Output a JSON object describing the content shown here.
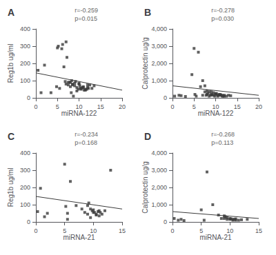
{
  "chart_data": [
    {
      "type": "scatter",
      "title": "A",
      "xlabel": "miRNA-122",
      "ylabel": "Reg1b ug/ml",
      "annotations": [
        "r=-0.259",
        "p=0.015"
      ],
      "xlim": [
        0,
        20
      ],
      "ylim": [
        0,
        400
      ],
      "xticks": [
        0,
        5,
        10,
        15,
        20
      ],
      "yticks": [
        0,
        100,
        200,
        300,
        400
      ],
      "grid": false,
      "series": [
        {
          "type": "scatter",
          "color": "#3a3a3a",
          "marker": "square",
          "x": [
            0.5,
            1.2,
            2.0,
            3.5,
            4.8,
            5.0,
            5.2,
            5.5,
            6.0,
            6.2,
            6.5,
            6.8,
            7.0,
            7.0,
            7.2,
            7.5,
            7.5,
            7.8,
            8.0,
            8.0,
            8.2,
            8.3,
            8.5,
            8.5,
            8.7,
            9.0,
            9.0,
            9.2,
            9.5,
            9.5,
            9.8,
            10.0,
            10.0,
            10.2,
            10.3,
            10.5,
            10.5,
            10.8,
            11.0,
            11.0,
            11.2,
            11.5,
            11.5,
            11.8,
            12.0,
            12.0,
            12.2,
            12.5,
            13.0,
            13.5
          ],
          "values": [
            160,
            30,
            190,
            30,
            65,
            290,
            300,
            55,
            285,
            310,
            180,
            95,
            325,
            80,
            235,
            90,
            75,
            90,
            90,
            65,
            30,
            100,
            75,
            80,
            10,
            85,
            70,
            95,
            60,
            40,
            50,
            85,
            80,
            70,
            55,
            50,
            55,
            60,
            60,
            65,
            45,
            50,
            45,
            50,
            60,
            75,
            55,
            75,
            55,
            70
          ]
        },
        {
          "type": "line",
          "color": "#3a3a3a",
          "line_style": "solid",
          "x": [
            0,
            20
          ],
          "values": [
            145,
            45
          ]
        }
      ]
    },
    {
      "type": "scatter",
      "title": "B",
      "xlabel": "miRNA-122",
      "ylabel": "Calprotectin ug/g",
      "annotations": [
        "r=-0.278",
        "p=0.030"
      ],
      "xlim": [
        0,
        20
      ],
      "ylim": [
        0,
        4000
      ],
      "xticks": [
        0,
        5,
        10,
        15,
        20
      ],
      "yticks": [
        0,
        1000,
        2000,
        3000,
        4000
      ],
      "grid": false,
      "series": [
        {
          "type": "scatter",
          "color": "#3a3a3a",
          "marker": "square",
          "x": [
            0.5,
            1.5,
            2.0,
            3.0,
            4.5,
            5.0,
            5.2,
            5.5,
            6.0,
            6.5,
            7.0,
            7.0,
            7.5,
            7.5,
            7.8,
            8.0,
            8.0,
            8.2,
            8.5,
            8.5,
            8.8,
            9.0,
            9.0,
            9.2,
            9.5,
            9.5,
            9.8,
            10.0,
            10.0,
            10.2,
            10.5,
            10.5,
            10.8,
            11.0,
            11.0,
            11.2,
            11.5,
            11.5,
            11.8,
            12.0,
            12.0,
            12.5,
            13.0,
            13.5
          ],
          "values": [
            100,
            150,
            130,
            80,
            1350,
            2870,
            200,
            100,
            2650,
            650,
            1000,
            150,
            700,
            350,
            150,
            400,
            200,
            250,
            350,
            100,
            150,
            350,
            200,
            175,
            300,
            150,
            100,
            250,
            200,
            250,
            150,
            100,
            200,
            200,
            150,
            175,
            100,
            150,
            100,
            150,
            100,
            100,
            150,
            125
          ]
        },
        {
          "type": "line",
          "color": "#3a3a3a",
          "line_style": "solid",
          "x": [
            0,
            20
          ],
          "values": [
            700,
            150
          ]
        }
      ]
    },
    {
      "type": "scatter",
      "title": "C",
      "xlabel": "miRNA-21",
      "ylabel": "Reg1b ug/ml",
      "annotations": [
        "r=-0.234",
        "p=0.168"
      ],
      "xlim": [
        0,
        15
      ],
      "ylim": [
        0,
        400
      ],
      "xticks": [
        0,
        5,
        10,
        15
      ],
      "yticks": [
        0,
        100,
        200,
        300,
        400
      ],
      "grid": false,
      "series": [
        {
          "type": "scatter",
          "color": "#3a3a3a",
          "marker": "square",
          "x": [
            0.3,
            0.8,
            1.5,
            2.0,
            5.0,
            5.2,
            5.5,
            5.5,
            6.0,
            7.0,
            8.0,
            8.5,
            9.0,
            9.0,
            9.2,
            9.5,
            9.5,
            9.8,
            10.0,
            10.0,
            10.2,
            10.5,
            10.5,
            10.8,
            11.0,
            11.0,
            11.2,
            11.5,
            12.0,
            13.0
          ],
          "values": [
            60,
            195,
            30,
            50,
            335,
            90,
            50,
            15,
            235,
            95,
            75,
            55,
            95,
            45,
            110,
            75,
            25,
            65,
            55,
            70,
            55,
            45,
            40,
            60,
            65,
            35,
            55,
            45,
            65,
            300
          ]
        },
        {
          "type": "line",
          "color": "#3a3a3a",
          "line_style": "solid",
          "x": [
            0,
            15
          ],
          "values": [
            148,
            75
          ]
        }
      ]
    },
    {
      "type": "scatter",
      "title": "D",
      "xlabel": "miRNA-21",
      "ylabel": "Calprotectin ug/g",
      "annotations": [
        "r=-0.268",
        "p=0.113"
      ],
      "xlim": [
        0,
        15
      ],
      "ylim": [
        0,
        4000
      ],
      "xticks": [
        0,
        5,
        10,
        15
      ],
      "yticks": [
        0,
        1000,
        2000,
        3000,
        4000
      ],
      "grid": false,
      "series": [
        {
          "type": "scatter",
          "color": "#3a3a3a",
          "marker": "square",
          "x": [
            0.3,
            1.0,
            1.5,
            2.0,
            5.0,
            5.5,
            6.0,
            7.0,
            8.0,
            8.5,
            9.0,
            9.0,
            9.2,
            9.5,
            9.5,
            10.0,
            10.0,
            10.2,
            10.5,
            10.5,
            10.8,
            11.0,
            11.0,
            11.5,
            12.0,
            13.0
          ],
          "values": [
            200,
            100,
            150,
            80,
            700,
            100,
            2900,
            1000,
            400,
            200,
            350,
            200,
            300,
            250,
            150,
            200,
            150,
            175,
            150,
            100,
            150,
            175,
            100,
            100,
            125,
            150
          ]
        },
        {
          "type": "line",
          "color": "#3a3a3a",
          "line_style": "solid",
          "x": [
            0,
            15
          ],
          "values": [
            600,
            200
          ]
        }
      ]
    }
  ]
}
